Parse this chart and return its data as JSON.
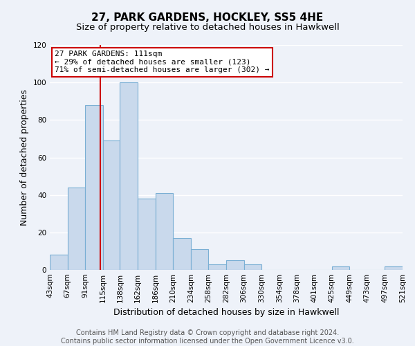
{
  "title": "27, PARK GARDENS, HOCKLEY, SS5 4HE",
  "subtitle": "Size of property relative to detached houses in Hawkwell",
  "xlabel": "Distribution of detached houses by size in Hawkwell",
  "ylabel": "Number of detached properties",
  "bar_edges": [
    43,
    67,
    91,
    115,
    138,
    162,
    186,
    210,
    234,
    258,
    282,
    306,
    330,
    354,
    378,
    401,
    425,
    449,
    473,
    497,
    521
  ],
  "bar_heights": [
    8,
    44,
    88,
    69,
    100,
    38,
    41,
    17,
    11,
    3,
    5,
    3,
    0,
    0,
    0,
    0,
    2,
    0,
    0,
    2
  ],
  "tick_labels": [
    "43sqm",
    "67sqm",
    "91sqm",
    "115sqm",
    "138sqm",
    "162sqm",
    "186sqm",
    "210sqm",
    "234sqm",
    "258sqm",
    "282sqm",
    "306sqm",
    "330sqm",
    "354sqm",
    "378sqm",
    "401sqm",
    "425sqm",
    "449sqm",
    "473sqm",
    "497sqm",
    "521sqm"
  ],
  "bar_color": "#c9d9ec",
  "bar_edge_color": "#7aafd4",
  "vline_x": 111,
  "vline_color": "#cc0000",
  "annotation_line1": "27 PARK GARDENS: 111sqm",
  "annotation_line2": "← 29% of detached houses are smaller (123)",
  "annotation_line3": "71% of semi-detached houses are larger (302) →",
  "ylim": [
    0,
    120
  ],
  "yticks": [
    0,
    20,
    40,
    60,
    80,
    100,
    120
  ],
  "footer_text": "Contains HM Land Registry data © Crown copyright and database right 2024.\nContains public sector information licensed under the Open Government Licence v3.0.",
  "background_color": "#eef2f9",
  "grid_color": "#ffffff",
  "title_fontsize": 11,
  "subtitle_fontsize": 9.5,
  "axis_label_fontsize": 9,
  "tick_fontsize": 7.5,
  "footer_fontsize": 7
}
